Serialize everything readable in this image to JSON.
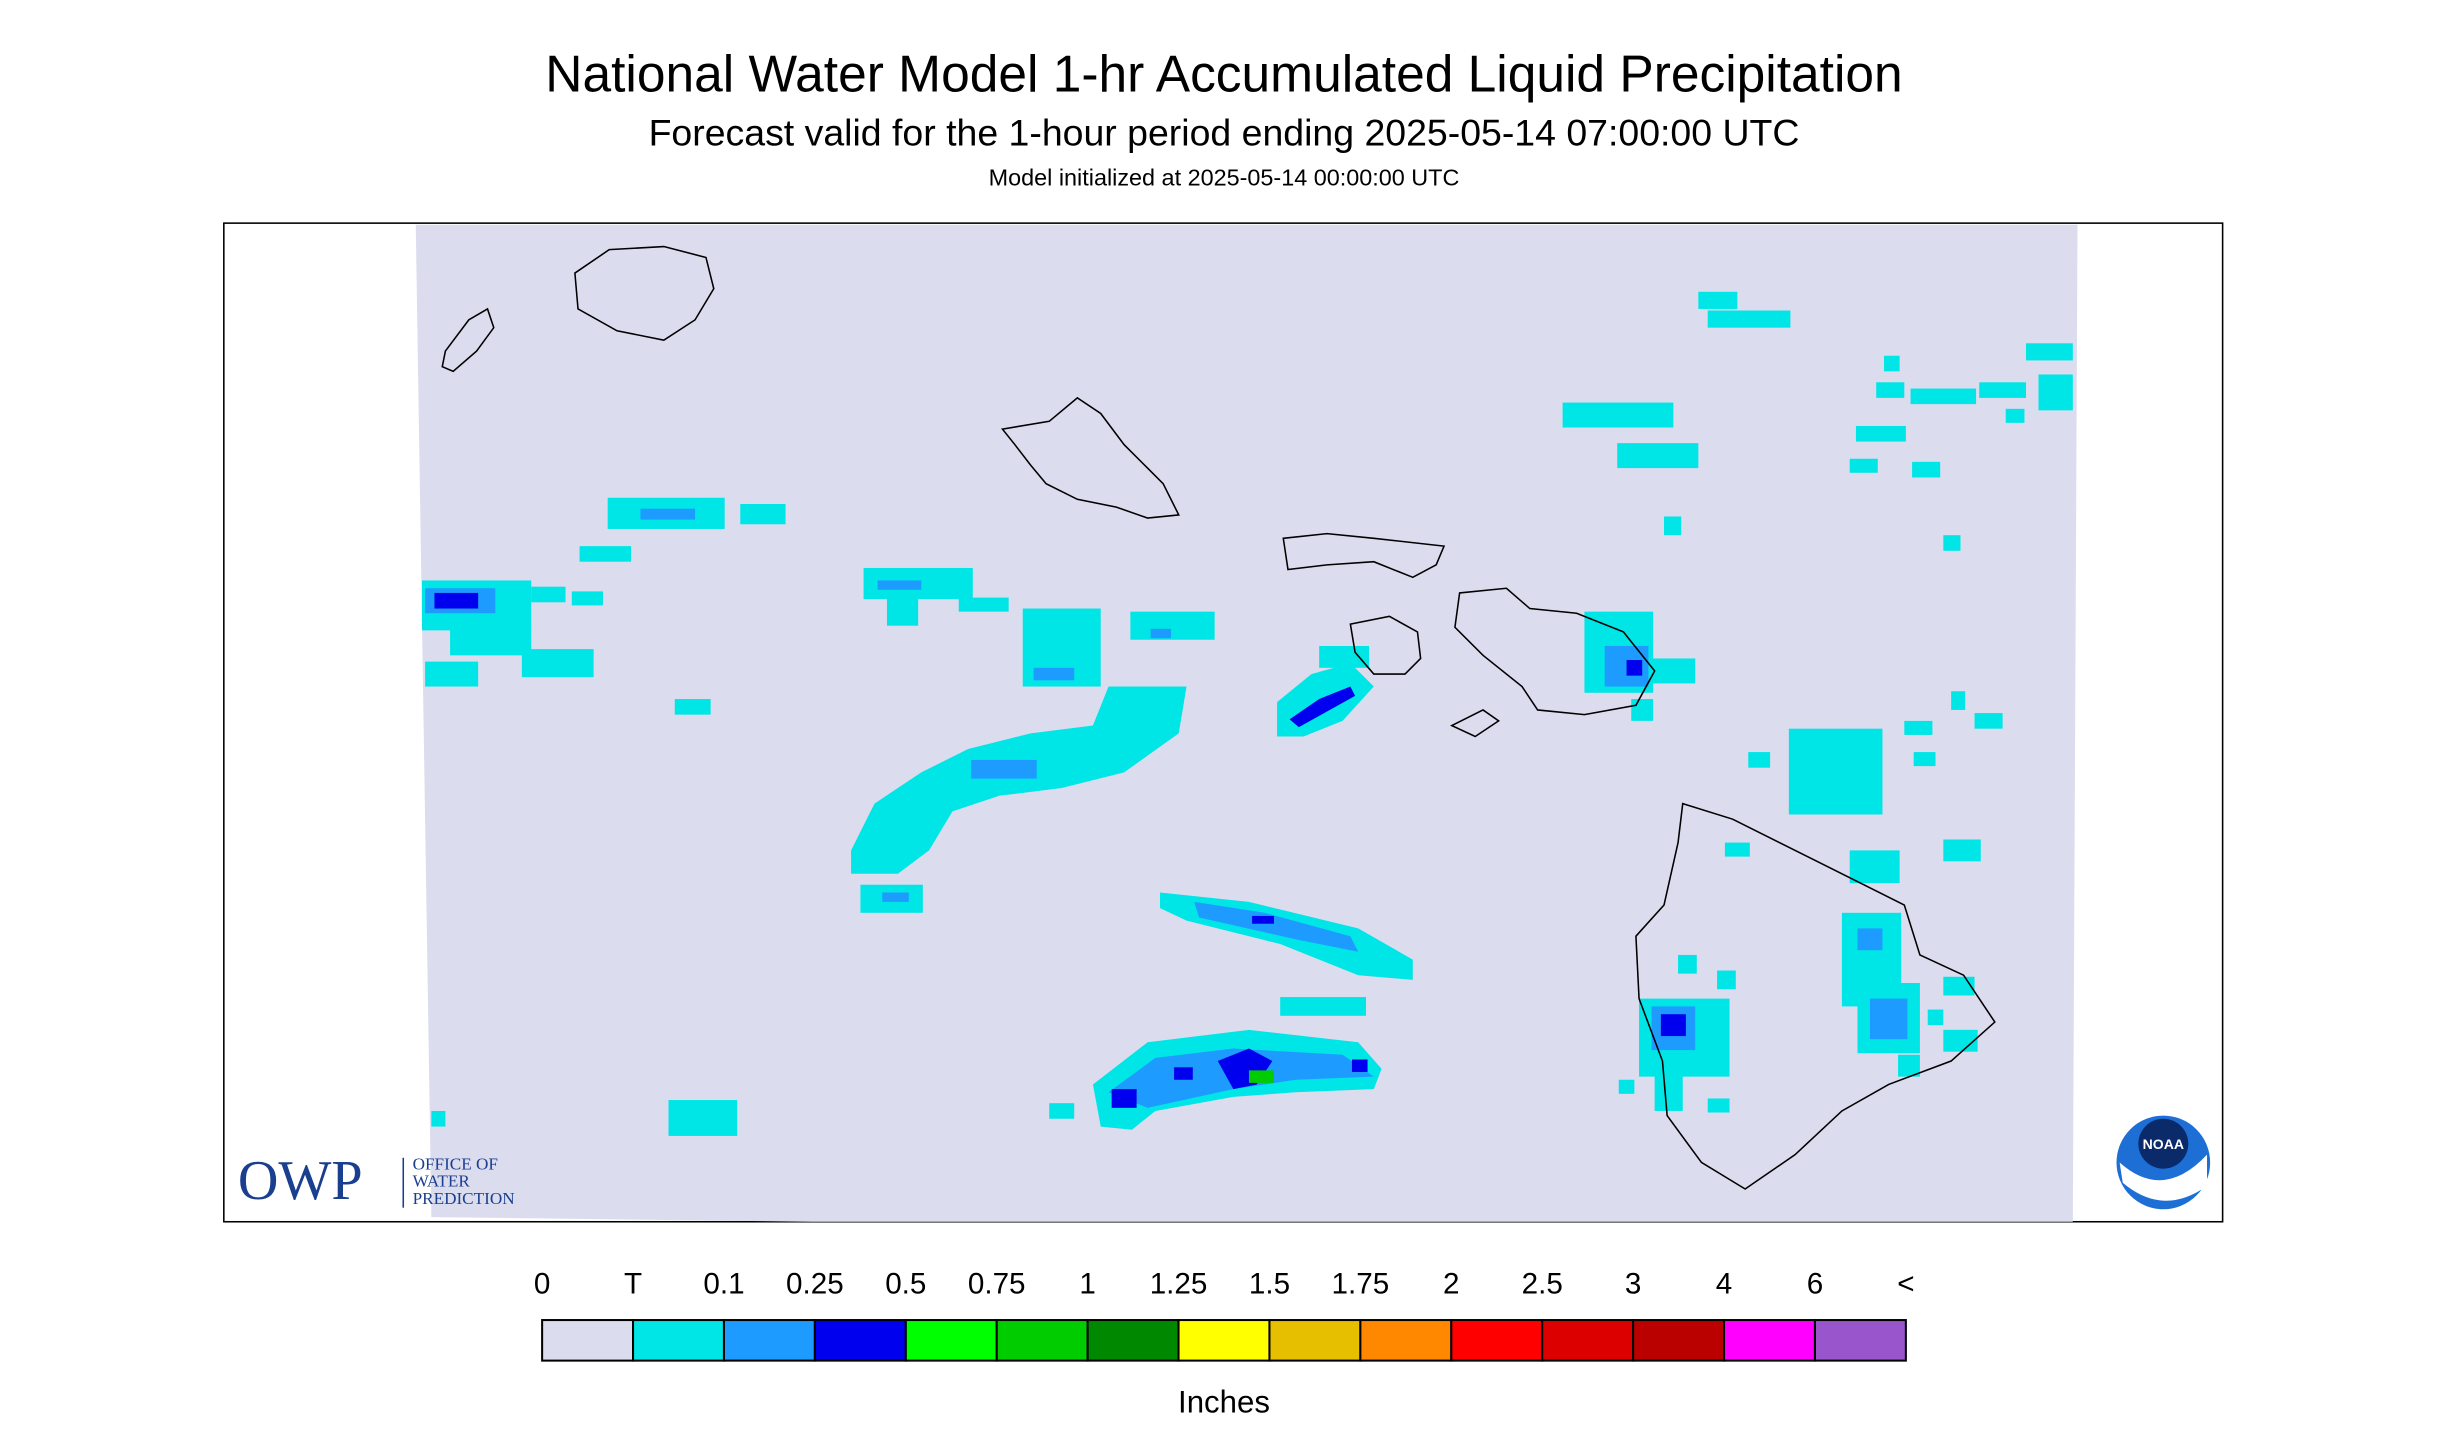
{
  "header": {
    "title": "National Water Model 1-hr Accumulated Liquid Precipitation",
    "subtitle": "Forecast valid for the 1-hour period ending 2025-05-14 07:00:00 UTC",
    "init": "Model initialized at 2025-05-14 00:00:00 UTC"
  },
  "legend": {
    "labels": [
      "0",
      "T",
      "0.1",
      "0.25",
      "0.5",
      "0.75",
      "1",
      "1.25",
      "1.5",
      "1.75",
      "2",
      "2.5",
      "3",
      "4",
      "6",
      "<"
    ],
    "colors": [
      "#dcdcef",
      "#00e6e6",
      "#1e9bff",
      "#0000ee",
      "#00ff00",
      "#00cc00",
      "#008800",
      "#ffff00",
      "#e6bf00",
      "#ff8800",
      "#ff0000",
      "#dd0000",
      "#bb0000",
      "#ff00ff",
      "#9955cc"
    ],
    "unit": "Inches"
  },
  "logos": {
    "owp": "OWP",
    "owp_line1": "OFFICE OF",
    "owp_line2": "WATER",
    "owp_line3": "PREDICTION",
    "noaa": "NOAA"
  }
}
